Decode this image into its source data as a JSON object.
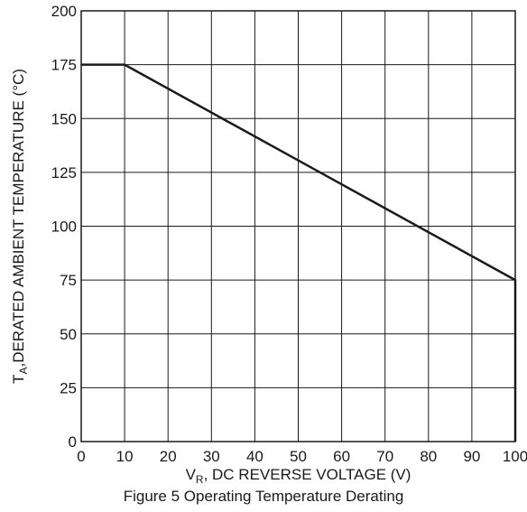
{
  "chart_data": {
    "type": "line",
    "caption": "Figure 5 Operating Temperature Derating",
    "xlabel": {
      "main": "V",
      "sub": "R",
      "rest": ", DC REVERSE VOLTAGE (V)"
    },
    "ylabel": {
      "main": "T",
      "sub": "A",
      "rest": ",DERATED AMBIENT TEMPERATURE (°C)"
    },
    "xlim": [
      0,
      100
    ],
    "ylim": [
      0,
      200
    ],
    "xticks": [
      0,
      10,
      20,
      30,
      40,
      50,
      60,
      70,
      80,
      90,
      100
    ],
    "yticks": [
      0,
      25,
      50,
      75,
      100,
      125,
      150,
      175,
      200
    ],
    "grid": true,
    "series": [
      {
        "x": [
          0,
          10,
          100,
          100
        ],
        "y": [
          175,
          175,
          75,
          0
        ]
      }
    ]
  }
}
